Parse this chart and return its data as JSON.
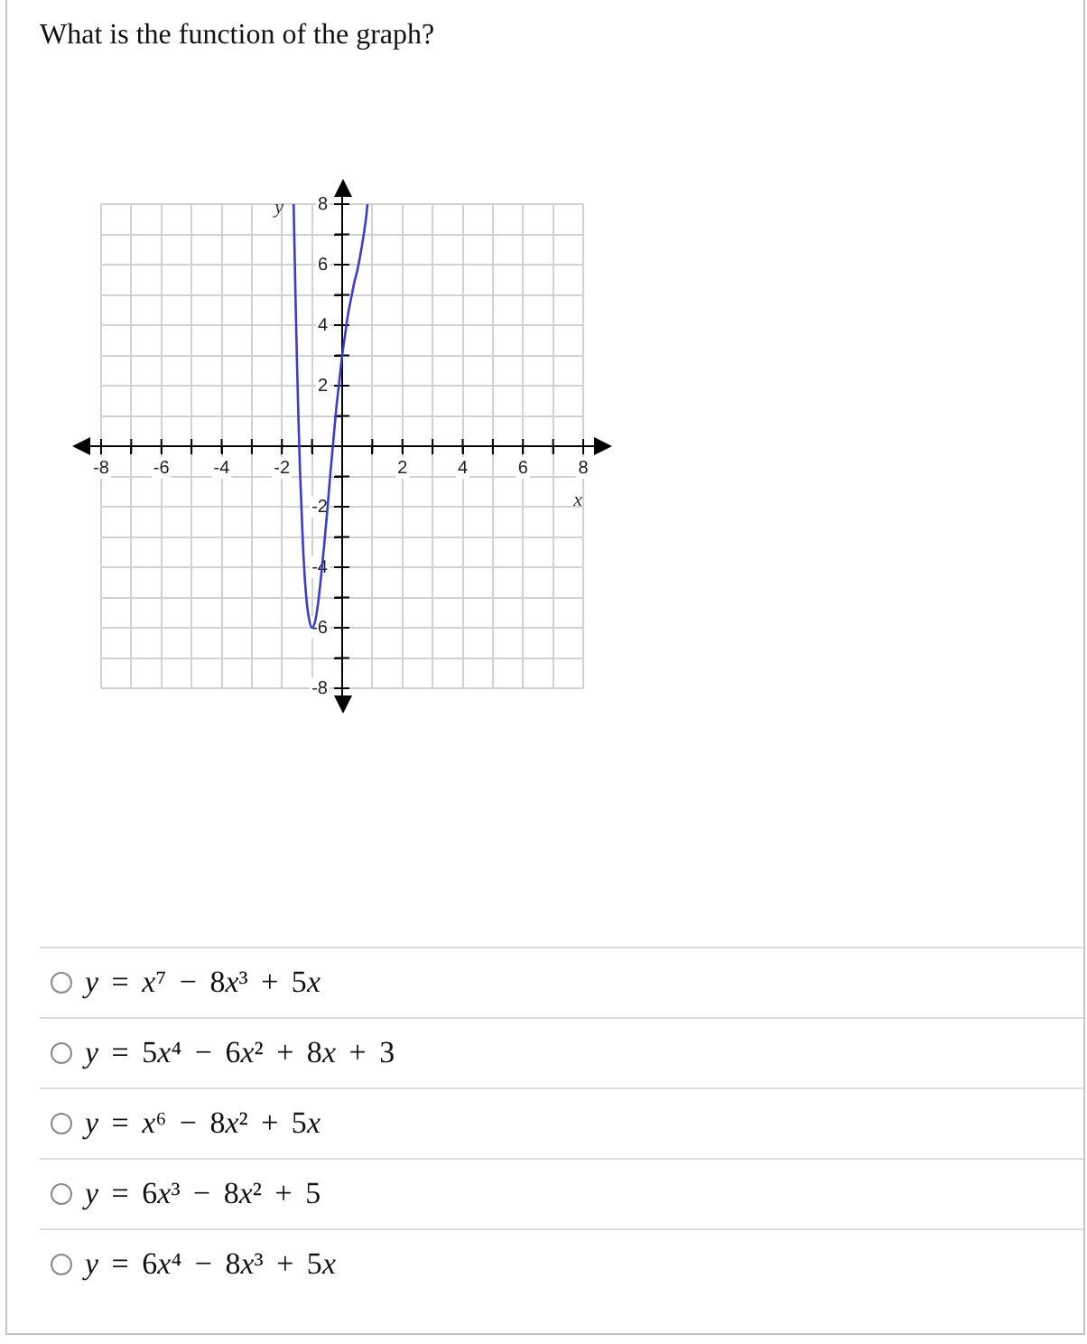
{
  "chart_data": {
    "type": "line",
    "title": "What is the function of the graph?",
    "xlabel": "x",
    "ylabel": "y",
    "x": [
      -1.61,
      -1.55,
      -1.5,
      -1.45,
      -1.4,
      -1.3,
      -1.2,
      -1.1,
      -1.0,
      -0.9,
      -0.8,
      -0.7,
      -0.6,
      -0.5,
      -0.4,
      -0.3,
      -0.2,
      -0.1,
      0,
      0.1,
      0.2,
      0.3,
      0.4,
      0.5,
      0.6,
      0.7,
      0.8,
      0.84
    ],
    "values": [
      8,
      5.0,
      2.8,
      0.9,
      -0.8,
      -3.3,
      -4.9,
      -5.7,
      -6,
      -5.8,
      -5.2,
      -4.3,
      -3.3,
      -2.2,
      -1.0,
      0.1,
      1.2,
      2.1,
      3,
      3.7,
      4.4,
      4.9,
      5.4,
      5.8,
      6.3,
      6.9,
      7.6,
      8
    ],
    "color": "#3b3bd0",
    "xlim": [
      -8,
      8
    ],
    "ylim": [
      -8,
      8
    ],
    "xticks": [
      -8,
      {
        "value": -7,
        "label": null
      },
      -6,
      {
        "value": -5,
        "label": null
      },
      -4,
      {
        "value": -3,
        "label": null
      },
      -2,
      {
        "value": -1,
        "label": null
      },
      {
        "value": 0,
        "label": null
      },
      {
        "value": 1,
        "label": null
      },
      2,
      {
        "value": 3,
        "label": null
      },
      4,
      {
        "value": 5,
        "label": null
      },
      6,
      {
        "value": 7,
        "label": null
      },
      8
    ],
    "yticks": [
      -8,
      {
        "value": -7,
        "label": null
      },
      -6,
      {
        "value": -5,
        "label": null
      },
      -4,
      {
        "value": -3,
        "label": null
      },
      -2,
      {
        "value": -1,
        "label": null
      },
      {
        "value": 0,
        "label": null
      },
      {
        "value": 1,
        "label": null
      },
      2,
      {
        "value": 3,
        "label": null
      },
      4,
      {
        "value": 5,
        "label": null
      },
      6,
      {
        "value": 7,
        "label": null
      },
      8
    ],
    "grid": true,
    "legend": false,
    "marker": "none",
    "annotations": [
      "y = x⁷ − 8x³ + 5x",
      "y = 5x⁴ − 6x² + 8x + 3",
      "y = x⁶ − 8x² + 5x",
      "y = 6x³ − 8x² + 5",
      "y = 6x⁴ − 8x³ + 5x"
    ]
  }
}
